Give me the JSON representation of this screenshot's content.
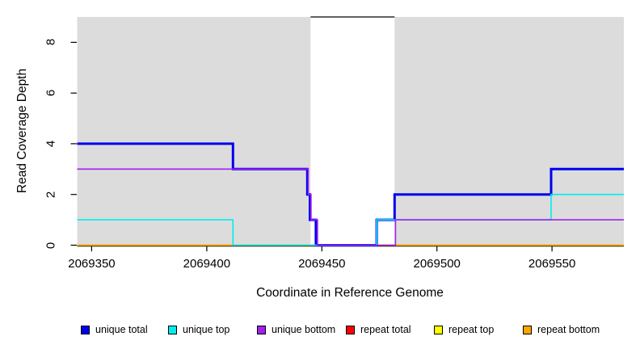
{
  "chart_data": {
    "type": "line",
    "subtype": "step-coverage",
    "title": "",
    "xlabel": "Coordinate in Reference Genome",
    "ylabel": "Read Coverage Depth",
    "xlim": [
      2069343.7,
      2069581.2
    ],
    "ylim": [
      0,
      9
    ],
    "x_ticks": [
      2069350,
      2069400,
      2069450,
      2069500,
      2069550
    ],
    "y_ticks": [
      0,
      2,
      4,
      6,
      8
    ],
    "grid": false,
    "legend_position": "bottom-horizontal",
    "background_color": "#ffffff",
    "unique_region_color": "#DCDCDC",
    "unique_regions": [
      [
        2069343.7,
        2069445.1
      ],
      [
        2069481.6,
        2069581.2
      ]
    ],
    "repeat_gap_region": [
      2069445.1,
      2069481.6
    ],
    "series": [
      {
        "name": "repeat total",
        "color": "#FF0000",
        "width": 1.6,
        "points": [
          [
            2069343.7,
            0
          ],
          [
            2069581.2,
            0
          ]
        ]
      },
      {
        "name": "repeat top",
        "color": "#FFFF00",
        "width": 1.6,
        "points": [
          [
            2069343.7,
            0
          ],
          [
            2069581.2,
            0
          ]
        ]
      },
      {
        "name": "repeat bottom",
        "color": "#FFA500",
        "width": 1.6,
        "points": [
          [
            2069343.7,
            0
          ],
          [
            2069581.2,
            0
          ]
        ]
      },
      {
        "name": "unique total",
        "color": "#0000EE",
        "width": 3,
        "points": [
          [
            2069343.7,
            4
          ],
          [
            2069411.4,
            4
          ],
          [
            2069411.4,
            3
          ],
          [
            2069443.7,
            3
          ],
          [
            2069443.7,
            2
          ],
          [
            2069444.8,
            2
          ],
          [
            2069444.8,
            1
          ],
          [
            2069447.4,
            1
          ],
          [
            2069447.4,
            0
          ],
          [
            2069473.8,
            0
          ],
          [
            2069473.8,
            1
          ],
          [
            2069481.6,
            1
          ],
          [
            2069481.6,
            2
          ],
          [
            2069549.6,
            2
          ],
          [
            2069549.6,
            3
          ],
          [
            2069581.2,
            3
          ]
        ]
      },
      {
        "name": "unique top",
        "color": "#00EEEE",
        "width": 1.6,
        "points": [
          [
            2069343.7,
            1
          ],
          [
            2069411.4,
            1
          ],
          [
            2069411.4,
            0
          ],
          [
            2069473.8,
            0
          ],
          [
            2069473.8,
            1
          ],
          [
            2069549.6,
            1
          ],
          [
            2069549.6,
            2
          ],
          [
            2069581.2,
            2
          ]
        ]
      },
      {
        "name": "unique bottom",
        "color": "#A020F0",
        "width": 1.6,
        "points": [
          [
            2069343.7,
            3
          ],
          [
            2069444.1,
            3
          ],
          [
            2069444.1,
            2
          ],
          [
            2069445.3,
            2
          ],
          [
            2069445.3,
            1
          ],
          [
            2069448.1,
            1
          ],
          [
            2069448.1,
            0
          ],
          [
            2069482.0,
            0
          ],
          [
            2069482.0,
            1
          ],
          [
            2069581.2,
            1
          ]
        ]
      }
    ],
    "annotation_segments": [
      {
        "name": "repeat-gap-top-line",
        "color": "#000000",
        "width": 1.3,
        "points": [
          [
            2069445.1,
            9
          ],
          [
            2069481.6,
            9
          ]
        ]
      }
    ]
  },
  "legend": {
    "items": [
      {
        "label": "unique total",
        "color": "#0000EE"
      },
      {
        "label": "unique top",
        "color": "#00EEEE"
      },
      {
        "label": "unique bottom",
        "color": "#A020F0"
      },
      {
        "label": "repeat total",
        "color": "#FF0000"
      },
      {
        "label": "repeat top",
        "color": "#FFFF00"
      },
      {
        "label": "repeat bottom",
        "color": "#FFA500"
      }
    ]
  }
}
